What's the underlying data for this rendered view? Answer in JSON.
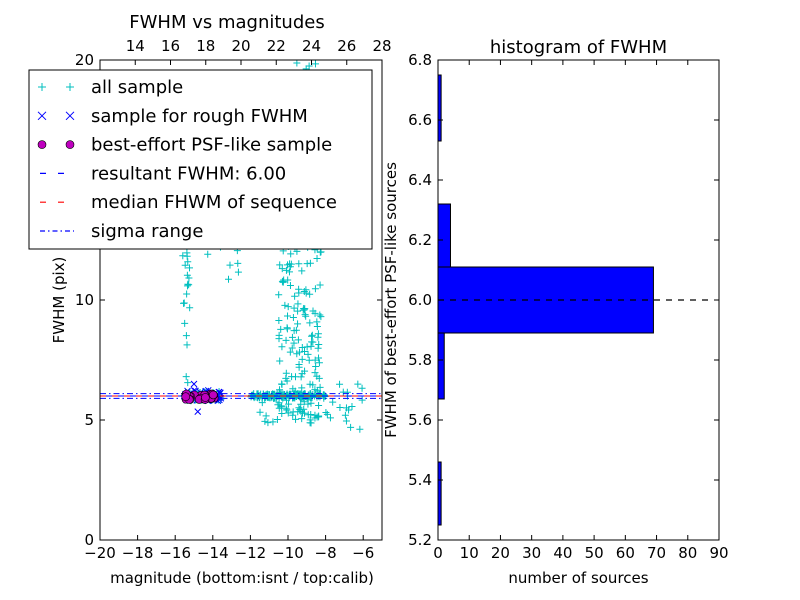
{
  "chart_data": [
    {
      "type": "scatter",
      "title": "FWHM vs magnitudes",
      "xlabel": "magnitude (bottom:isnt / top:calib)",
      "ylabel": "FWHM (pix)",
      "xlim": [
        -20,
        -5
      ],
      "ylim": [
        0,
        20
      ],
      "x_ticks": [
        -20,
        -18,
        -16,
        -14,
        -12,
        -10,
        -8,
        -6
      ],
      "x_tick_labels": [
        "−20",
        "−18",
        "−16",
        "−14",
        "−12",
        "−10",
        "−8",
        "−6"
      ],
      "top_xlim": [
        12,
        28
      ],
      "top_x_ticks": [
        14,
        16,
        18,
        20,
        22,
        24,
        26,
        28
      ],
      "y_ticks": [
        0,
        5,
        10,
        20
      ],
      "legend": {
        "position": "upper-left",
        "entries": [
          {
            "label": "all sample",
            "marker": "+",
            "color": "#00bfbf"
          },
          {
            "label": "sample for rough FWHM",
            "marker": "x",
            "color": "#0000ff"
          },
          {
            "label": "best-effort PSF-like sample",
            "marker": "o",
            "color": "#bf00bf"
          },
          {
            "label": "resultant FWHM: 6.00",
            "line": "dashed",
            "color": "#0000ff"
          },
          {
            "label": "median FHWM of sequence",
            "line": "dashed",
            "color": "#ff0000"
          },
          {
            "label": "sigma range",
            "line": "dashdot",
            "color": "#0000ff"
          }
        ]
      },
      "resultant_fwhm": 6.0,
      "median_fwhm": 6.0,
      "sigma_range": [
        5.9,
        6.1
      ],
      "all_sample_clusters": [
        {
          "x": [
            -12,
            -8
          ],
          "y": [
            5.9,
            6.1
          ],
          "n": 170
        },
        {
          "x": [
            -15.5,
            -13.5
          ],
          "y": [
            5.8,
            6.2
          ],
          "n": 60
        },
        {
          "x": [
            -10.5,
            -8.2
          ],
          "y": [
            5.0,
            16.0
          ],
          "n": 220
        },
        {
          "x": [
            -9.8,
            -8.5
          ],
          "y": [
            16.0,
            20.0
          ],
          "n": 25
        },
        {
          "x": [
            -15.6,
            -15.2
          ],
          "y": [
            6.0,
            16.5
          ],
          "n": 35
        },
        {
          "x": [
            -14.5,
            -12.5
          ],
          "y": [
            10.0,
            13.5
          ],
          "n": 10
        },
        {
          "x": [
            -11.5,
            -7.5
          ],
          "y": [
            4.8,
            5.8
          ],
          "n": 25
        },
        {
          "x": [
            -7.5,
            -6.0
          ],
          "y": [
            4.5,
            6.8
          ],
          "n": 15
        }
      ],
      "rough_sample": {
        "x": [
          -15.5,
          -13.5
        ],
        "y": [
          5.8,
          6.25
        ],
        "n": 40,
        "outliers": [
          [
            -15.0,
            6.5
          ],
          [
            -14.8,
            5.35
          ]
        ]
      },
      "psf_like_sample": {
        "x": [
          -15.5,
          -13.8
        ],
        "y": [
          5.85,
          6.1
        ],
        "n": 30
      }
    },
    {
      "type": "bar",
      "orientation": "horizontal",
      "title": "histogram of FWHM",
      "xlabel": "number of sources",
      "ylabel": "FWHM of best-effort PSF-like sources",
      "xlim": [
        0,
        90
      ],
      "ylim": [
        5.2,
        6.8
      ],
      "x_ticks": [
        0,
        10,
        20,
        30,
        40,
        50,
        60,
        70,
        80,
        90
      ],
      "y_ticks": [
        5.2,
        5.4,
        5.6,
        5.8,
        6.0,
        6.2,
        6.4,
        6.6,
        6.8
      ],
      "y_tick_labels": [
        "5.2",
        "5.4",
        "5.6",
        "5.8",
        "6.0",
        "6.2",
        "6.4",
        "6.6",
        "6.8"
      ],
      "bins": [
        {
          "y0": 5.25,
          "y1": 5.46,
          "count": 1
        },
        {
          "y0": 5.67,
          "y1": 5.89,
          "count": 2
        },
        {
          "y0": 5.89,
          "y1": 6.11,
          "count": 69
        },
        {
          "y0": 6.11,
          "y1": 6.32,
          "count": 4
        },
        {
          "y0": 6.53,
          "y1": 6.75,
          "count": 1
        }
      ],
      "color": "#0000ff",
      "reference_line": {
        "y": 6.0,
        "x_range": [
          0,
          87
        ],
        "style": "dashed",
        "color": "#000000"
      }
    }
  ]
}
